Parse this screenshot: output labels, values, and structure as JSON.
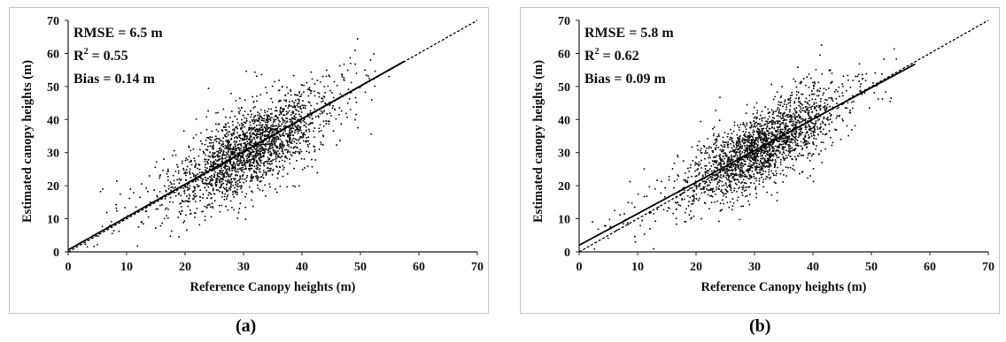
{
  "captions": [
    "(a)",
    "(b)"
  ],
  "chart_data": [
    {
      "type": "scatter",
      "title": "",
      "xlabel": "Reference Canopy heights (m)",
      "ylabel": "Estimated canopy heights (m)",
      "xlim": [
        0,
        70
      ],
      "ylim": [
        0,
        70
      ],
      "xticks": [
        0,
        10,
        20,
        30,
        40,
        50,
        60,
        70
      ],
      "yticks": [
        0,
        10,
        20,
        30,
        40,
        50,
        60,
        70
      ],
      "grid": false,
      "annotations": {
        "rmse": "RMSE = 6.5 m",
        "r2_label": "R",
        "r2_sup": "2",
        "r2_value": " = 0.55",
        "bias": "Bias = 0.14 m"
      },
      "point_cloud": {
        "n": 2200,
        "x_center": 31,
        "x_sd": 6.6,
        "slope": 0.97,
        "intercept": 1.0,
        "noise_sd": 6.4
      },
      "series": [
        {
          "kind": "fit-line",
          "style": "solid",
          "x": [
            0,
            57.5
          ],
          "y": [
            0.6,
            57.6
          ]
        },
        {
          "kind": "one-to-one-line",
          "style": "dashed",
          "x": [
            0,
            70
          ],
          "y": [
            0,
            70
          ]
        }
      ]
    },
    {
      "type": "scatter",
      "title": "",
      "xlabel": "Reference Canopy heights (m)",
      "ylabel": "Estimated canopy heights (m)",
      "xlim": [
        0,
        70
      ],
      "ylim": [
        0,
        70
      ],
      "xticks": [
        0,
        10,
        20,
        30,
        40,
        50,
        60,
        70
      ],
      "yticks": [
        0,
        10,
        20,
        30,
        40,
        50,
        60,
        70
      ],
      "grid": false,
      "annotations": {
        "rmse": "RMSE = 5.8 m",
        "r2_label": "R",
        "r2_sup": "2",
        "r2_value": " = 0.62",
        "bias": "Bias = 0.09 m"
      },
      "point_cloud": {
        "n": 2200,
        "x_center": 31,
        "x_sd": 6.6,
        "slope": 0.95,
        "intercept": 2.0,
        "noise_sd": 5.6
      },
      "series": [
        {
          "kind": "fit-line",
          "style": "solid",
          "x": [
            0,
            57.5
          ],
          "y": [
            2.0,
            56.8
          ]
        },
        {
          "kind": "one-to-one-line",
          "style": "dashed",
          "x": [
            0,
            70
          ],
          "y": [
            0,
            70
          ]
        }
      ]
    }
  ]
}
